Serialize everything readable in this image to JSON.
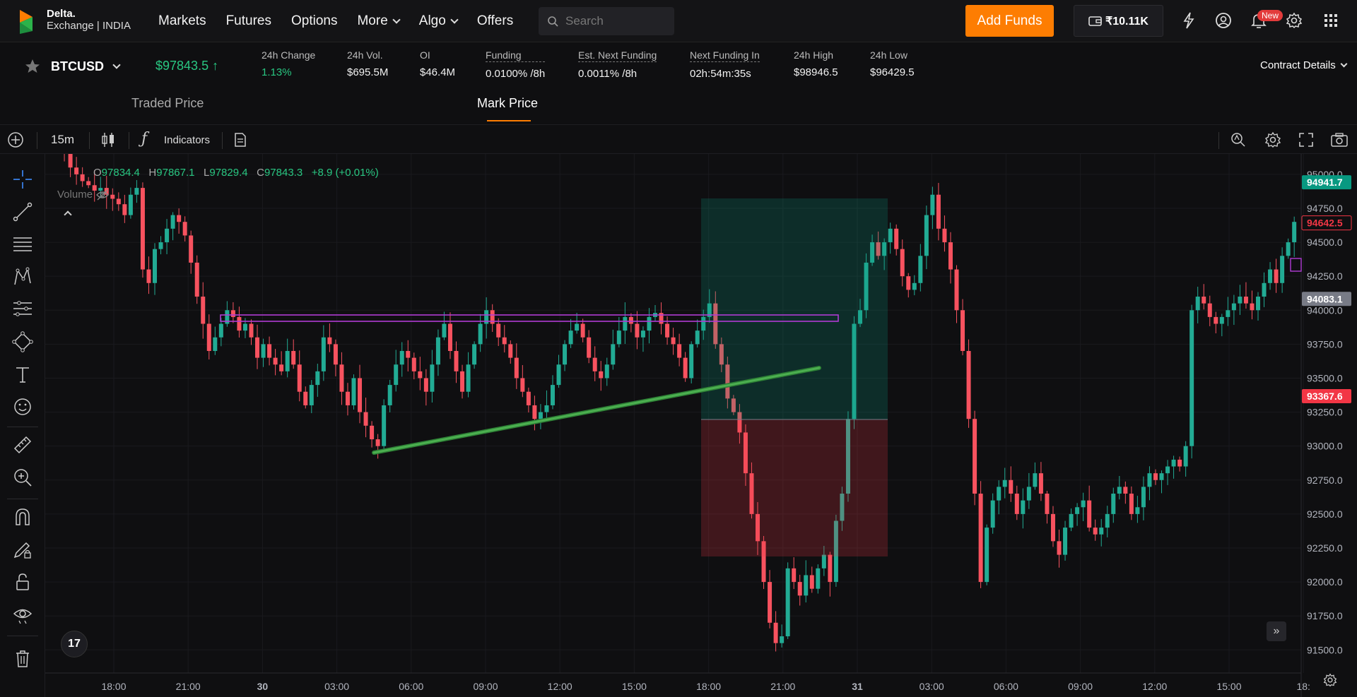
{
  "nav": {
    "logo_line1": "Delta.",
    "logo_line2": "Exchange | INDIA",
    "links": [
      {
        "label": "Markets"
      },
      {
        "label": "Futures"
      },
      {
        "label": "Options"
      },
      {
        "label": "More",
        "dropdown": true
      },
      {
        "label": "Algo",
        "dropdown": true
      },
      {
        "label": "Offers"
      }
    ],
    "search_placeholder": "Search",
    "add_funds_label": "Add Funds",
    "wallet_balance": "₹10.11K",
    "new_badge": "New",
    "icons": [
      "wallet-icon",
      "lightning-icon",
      "account-icon",
      "bell-icon",
      "gear-icon",
      "apps-grid-icon"
    ],
    "accent_color": "#fd7d02"
  },
  "ticker": {
    "symbol": "BTCUSD",
    "last_price": "$97843.5",
    "stats": [
      {
        "label": "24h Change",
        "value": "1.13%",
        "dashed": false,
        "green": true
      },
      {
        "label": "24h Vol.",
        "value": "$695.5M",
        "dashed": false,
        "green": false
      },
      {
        "label": "OI",
        "value": "$46.4M",
        "dashed": false,
        "green": false
      },
      {
        "label": "Funding",
        "value": "0.0100% /8h",
        "dashed": true,
        "green": false
      },
      {
        "label": "Est. Next Funding",
        "value": "0.0011% /8h",
        "dashed": true,
        "green": false
      },
      {
        "label": "Next Funding In",
        "value": "02h:54m:35s",
        "dashed": true,
        "green": false
      },
      {
        "label": "24h High",
        "value": "$98946.5",
        "dashed": false,
        "green": false
      },
      {
        "label": "24h Low",
        "value": "$96429.5",
        "dashed": false,
        "green": false
      }
    ],
    "contract_details_label": "Contract Details"
  },
  "price_tabs": [
    {
      "label": "Traded Price",
      "active": false
    },
    {
      "label": "Mark Price",
      "active": true
    }
  ],
  "chart_toolbar": {
    "interval": "15m",
    "indicators_label": "Indicators"
  },
  "left_tools": [
    "crosshair-icon",
    "trendline-icon",
    "fib-lines-icon",
    "pattern-icon",
    "forecast-icon",
    "shapes-icon",
    "text-icon",
    "emoji-icon",
    "ruler-icon",
    "zoom-in-icon",
    "magnet-icon",
    "lock-drawing-icon",
    "unlock-icon",
    "eye-icon",
    "trash-icon"
  ],
  "legend": {
    "o_label": "O",
    "o": "97834.4",
    "h_label": "H",
    "h": "97867.1",
    "l_label": "L",
    "l": "97829.4",
    "c_label": "C",
    "c": "97843.3",
    "change": "+8.9 (+0.01%)",
    "volume_label": "Volume"
  },
  "chart_data": {
    "type": "candlestick",
    "y_ticks": [
      95000,
      94750,
      94500,
      94250,
      94000,
      93750,
      93500,
      93250,
      93000,
      92750,
      92500,
      92250,
      92000,
      91750,
      91500
    ],
    "y_tick_labels": [
      "95000.0",
      "94750.0",
      "94500.0",
      "94250.0",
      "94000.0",
      "93750.0",
      "93500.0",
      "93250.0",
      "93000.0",
      "92750.0",
      "92500.0",
      "92250.0",
      "92000.0",
      "91750.0",
      "91500.0"
    ],
    "ylim": [
      91330,
      95150
    ],
    "x_tick_labels": [
      "18:00",
      "21:00",
      "30",
      "03:00",
      "06:00",
      "09:00",
      "12:00",
      "15:00",
      "18:00",
      "21:00",
      "31",
      "03:00",
      "06:00",
      "09:00",
      "12:00",
      "15:00",
      "18:"
    ],
    "price_labels": [
      {
        "value": 94941.7,
        "text": "94941.7",
        "color": "#089981",
        "style": "fill"
      },
      {
        "value": 94642.5,
        "text": "94642.5",
        "color": "#f23645",
        "style": "outline"
      },
      {
        "value": 94083.1,
        "text": "94083.1",
        "color": "#787b86",
        "style": "fill"
      },
      {
        "value": 93367.6,
        "text": "93367.6",
        "color": "#f23645",
        "style": "fill"
      }
    ],
    "up_color": "#22ab94",
    "down_color": "#f7525f",
    "closes": [
      95300,
      95250,
      95150,
      95050,
      95000,
      94950,
      94920,
      94880,
      94900,
      94850,
      94820,
      94780,
      94700,
      94850,
      94900,
      94300,
      94200,
      94450,
      94500,
      94600,
      94700,
      94650,
      94550,
      94350,
      94100,
      93900,
      93700,
      93800,
      93900,
      94000,
      93950,
      93850,
      93900,
      93800,
      93650,
      93750,
      93650,
      93600,
      93550,
      93700,
      93600,
      93400,
      93300,
      93450,
      93550,
      93800,
      93750,
      93600,
      93400,
      93300,
      93500,
      93250,
      93150,
      93050,
      93000,
      93300,
      93450,
      93600,
      93700,
      93650,
      93550,
      93500,
      93400,
      93600,
      93800,
      93900,
      93700,
      93550,
      93400,
      93600,
      93750,
      93900,
      94000,
      93900,
      93800,
      93750,
      93650,
      93500,
      93400,
      93300,
      93200,
      93250,
      93300,
      93450,
      93600,
      93750,
      93850,
      93900,
      93800,
      93650,
      93550,
      93500,
      93600,
      93750,
      93850,
      93950,
      93900,
      93800,
      93850,
      93950,
      93980,
      93900,
      93800,
      93750,
      93650,
      93500,
      93750,
      93850,
      93950,
      94050,
      93750,
      93600,
      93350,
      93250,
      93100,
      92800,
      92500,
      92300,
      92000,
      91700,
      91550,
      91600,
      92100,
      92000,
      91900,
      92050,
      91950,
      92100,
      92200,
      92000,
      92450,
      92650,
      93200,
      93900,
      94000,
      94350,
      94500,
      94400,
      94500,
      94600,
      94450,
      94250,
      94150,
      94200,
      94400,
      94700,
      94850,
      94600,
      94500,
      94300,
      94000,
      93700,
      93200,
      92650,
      92000,
      92400,
      92600,
      92700,
      92750,
      92650,
      92500,
      92600,
      92700,
      92800,
      92650,
      92500,
      92300,
      92200,
      92400,
      92500,
      92550,
      92600,
      92400,
      92350,
      92400,
      92500,
      92650,
      92700,
      92650,
      92500,
      92550,
      92700,
      92800,
      92750,
      92800,
      92850,
      92900,
      92850,
      93000,
      94000,
      94100,
      94050,
      93950,
      93900,
      93950,
      94000,
      94050,
      94100,
      94050,
      94000,
      94100,
      94200,
      94300,
      94200,
      94400,
      94500,
      94650
    ]
  },
  "expand_label": "»",
  "tv_logo": "17"
}
